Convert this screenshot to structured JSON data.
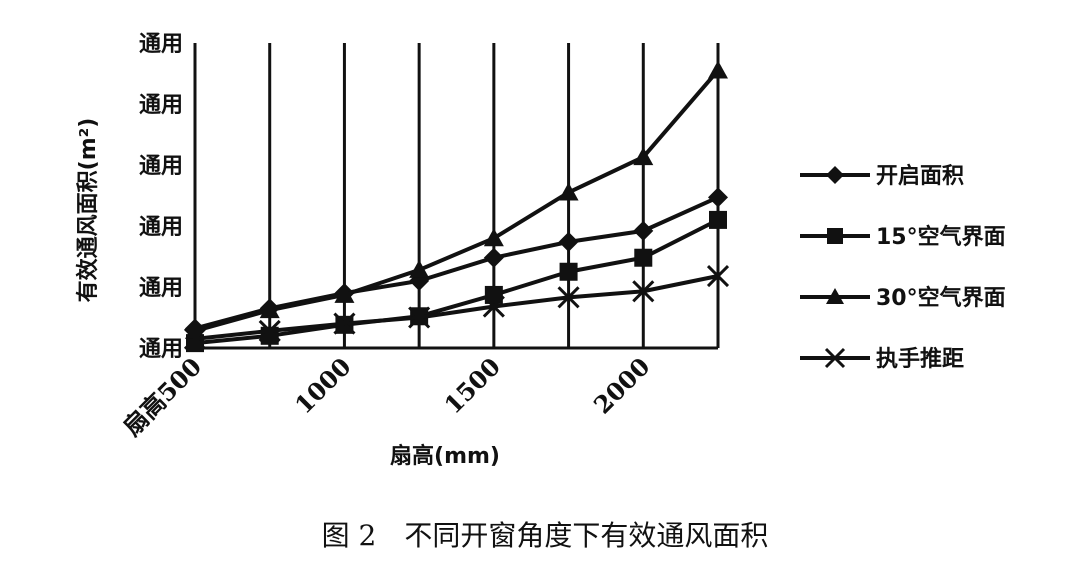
{
  "chart_data": {
    "type": "line",
    "x": [
      500,
      750,
      1000,
      1250,
      1500,
      1750,
      2000,
      2250
    ],
    "xtick_labels": [
      "扇高500",
      "1000",
      "1500",
      "2000"
    ],
    "xtick_values": [
      500,
      1000,
      1500,
      2000
    ],
    "xlim": [
      500,
      2250
    ],
    "xlabel": "扇高(mm)",
    "ylabel": "有效通风面积(m²)",
    "ytick_labels": [
      "通用",
      "通用",
      "通用",
      "通用",
      "通用",
      "通用"
    ],
    "ylim": [
      0,
      5
    ],
    "grid": "vertical",
    "legend_position": "right",
    "series": [
      {
        "name": "开启面积",
        "marker": "diamond",
        "values": [
          0.32,
          0.65,
          0.9,
          1.1,
          1.48,
          1.74,
          1.92,
          2.47
        ]
      },
      {
        "name": "15°空气界面",
        "marker": "square",
        "values": [
          0.08,
          0.2,
          0.38,
          0.52,
          0.87,
          1.25,
          1.48,
          2.1
        ]
      },
      {
        "name": "30°空气界面",
        "marker": "triangle",
        "values": [
          0.28,
          0.62,
          0.87,
          1.28,
          1.8,
          2.55,
          3.13,
          4.55
        ]
      },
      {
        "name": "执手推距",
        "marker": "x",
        "values": [
          0.15,
          0.28,
          0.4,
          0.5,
          0.68,
          0.83,
          0.93,
          1.18
        ]
      }
    ],
    "caption": "图 2　不同开窗角度下有效通风面积"
  }
}
